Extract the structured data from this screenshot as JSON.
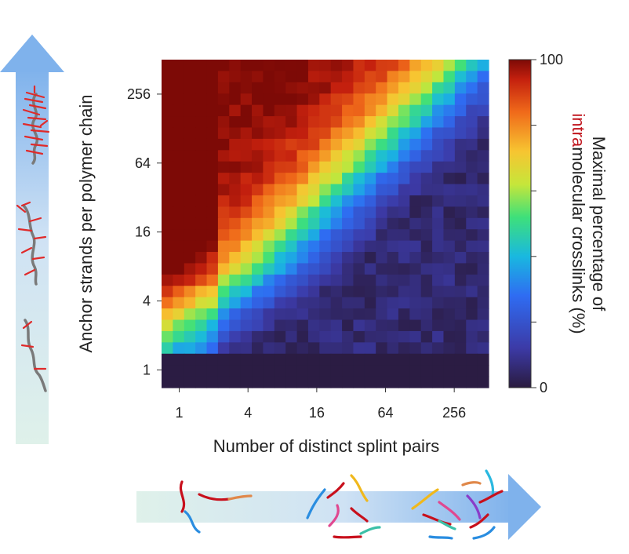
{
  "chart_data": {
    "type": "heatmap",
    "title": "",
    "xlabel": "Number of distinct splint pairs",
    "ylabel": "Anchor strands per polymer chain",
    "x_scale": "log2",
    "y_scale": "log2",
    "x_range": [
      0.7,
      512
    ],
    "y_range": [
      0.7,
      512
    ],
    "x_ticks": [
      1,
      4,
      16,
      64,
      256
    ],
    "x_tick_labels": [
      "1",
      "4",
      "16",
      "64",
      "256"
    ],
    "y_ticks": [
      1,
      4,
      16,
      64,
      256
    ],
    "y_tick_labels": [
      "1",
      "4",
      "16",
      "64",
      "256"
    ],
    "grid": false,
    "colormap": "jet",
    "colorbar": {
      "min": 0,
      "max": 100,
      "tick_labels": [
        "0",
        "100"
      ],
      "label_prefix": "Maximal percentage of",
      "label_highlight": "intra",
      "label_suffix": "molecular crosslinks (%)",
      "highlight_color": "#c0141c"
    },
    "trend": "Values near 100% when anchor strands greatly exceed splint pairs, falling to near 0% when splint pairs exceed anchor strands; a single anchor strand gives ~0% everywhere."
  }
}
